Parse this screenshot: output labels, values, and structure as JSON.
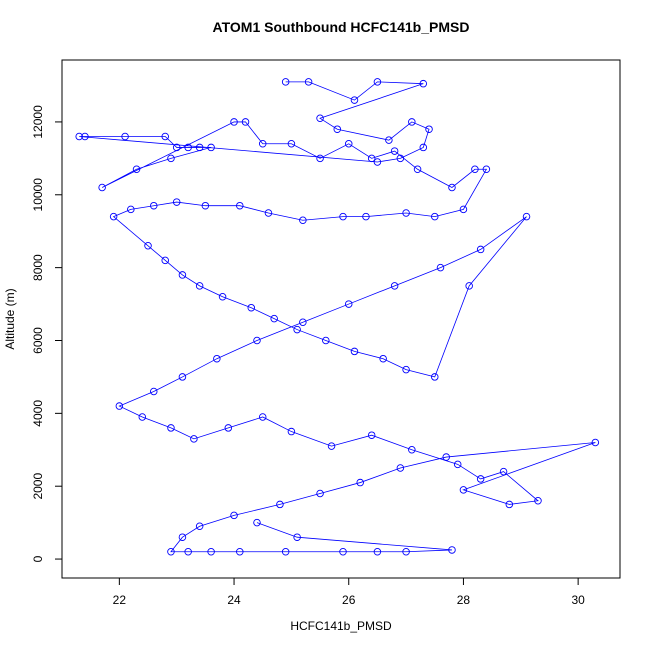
{
  "chart_data": {
    "type": "line",
    "title": "ATOM1 Southbound HCFC141b_PMSD",
    "x_label": "HCFC141b_PMSD",
    "y_label": "Altitude (m)",
    "xlim": [
      21.0,
      30.73
    ],
    "ylim": [
      -520,
      13700
    ],
    "xticks": [
      22,
      24,
      26,
      28,
      30
    ],
    "yticks": [
      0,
      2000,
      4000,
      6000,
      8000,
      10000,
      12000
    ],
    "series": [
      {
        "name": "HCFC141b_PMSD",
        "color": "#0000ff",
        "markers": true,
        "x": [
          24.9,
          25.3,
          26.1,
          26.5,
          27.3,
          25.5,
          25.8,
          26.7,
          27.1,
          27.4,
          27.3,
          26.9,
          26.5,
          21.3,
          21.4,
          22.1,
          22.8,
          23.0,
          23.2,
          23.4,
          23.6,
          22.9,
          22.3,
          21.7,
          24.0,
          24.2,
          24.5,
          25.0,
          25.5,
          26.0,
          26.4,
          26.8,
          27.2,
          27.8,
          28.2,
          28.4,
          28.0,
          27.5,
          27.0,
          26.3,
          25.9,
          25.2,
          24.6,
          24.1,
          23.5,
          23.0,
          22.6,
          22.2,
          21.9,
          22.5,
          22.8,
          23.1,
          23.4,
          23.8,
          24.3,
          24.7,
          25.1,
          25.6,
          26.1,
          26.6,
          27.0,
          27.5,
          28.1,
          29.1,
          28.3,
          27.6,
          26.8,
          26.0,
          25.2,
          24.4,
          23.7,
          23.1,
          22.6,
          22.0,
          22.4,
          22.9,
          23.3,
          23.9,
          24.5,
          25.0,
          25.7,
          26.4,
          27.1,
          27.9,
          28.3,
          28.7,
          29.3,
          28.8,
          28.0,
          30.3,
          27.7,
          26.9,
          26.2,
          25.5,
          24.8,
          24.0,
          23.4,
          23.1,
          22.9,
          23.2,
          23.6,
          24.1,
          24.9,
          25.9,
          26.5,
          27.0,
          27.8,
          25.1,
          24.4
        ],
        "values": [
          13100,
          13100,
          12600,
          13100,
          13050,
          12100,
          11800,
          11500,
          12000,
          11800,
          11300,
          11000,
          10900,
          11600,
          11600,
          11600,
          11600,
          11300,
          11300,
          11300,
          11300,
          11000,
          10700,
          10200,
          12000,
          12000,
          11400,
          11400,
          11000,
          11400,
          11000,
          11200,
          10700,
          10200,
          10700,
          10700,
          9600,
          9400,
          9500,
          9400,
          9400,
          9300,
          9500,
          9700,
          9700,
          9800,
          9700,
          9600,
          9400,
          8600,
          8200,
          7800,
          7500,
          7200,
          6900,
          6600,
          6300,
          6000,
          5700,
          5500,
          5200,
          5000,
          7500,
          9400,
          8500,
          8000,
          7500,
          7000,
          6500,
          6000,
          5500,
          5000,
          4600,
          4200,
          3900,
          3600,
          3300,
          3600,
          3900,
          3500,
          3100,
          3400,
          3000,
          2600,
          2200,
          2400,
          1600,
          1500,
          1900,
          3200,
          2800,
          2500,
          2100,
          1800,
          1500,
          1200,
          900,
          600,
          200,
          200,
          200,
          200,
          200,
          200,
          200,
          200,
          250,
          600,
          1000
        ]
      }
    ]
  }
}
